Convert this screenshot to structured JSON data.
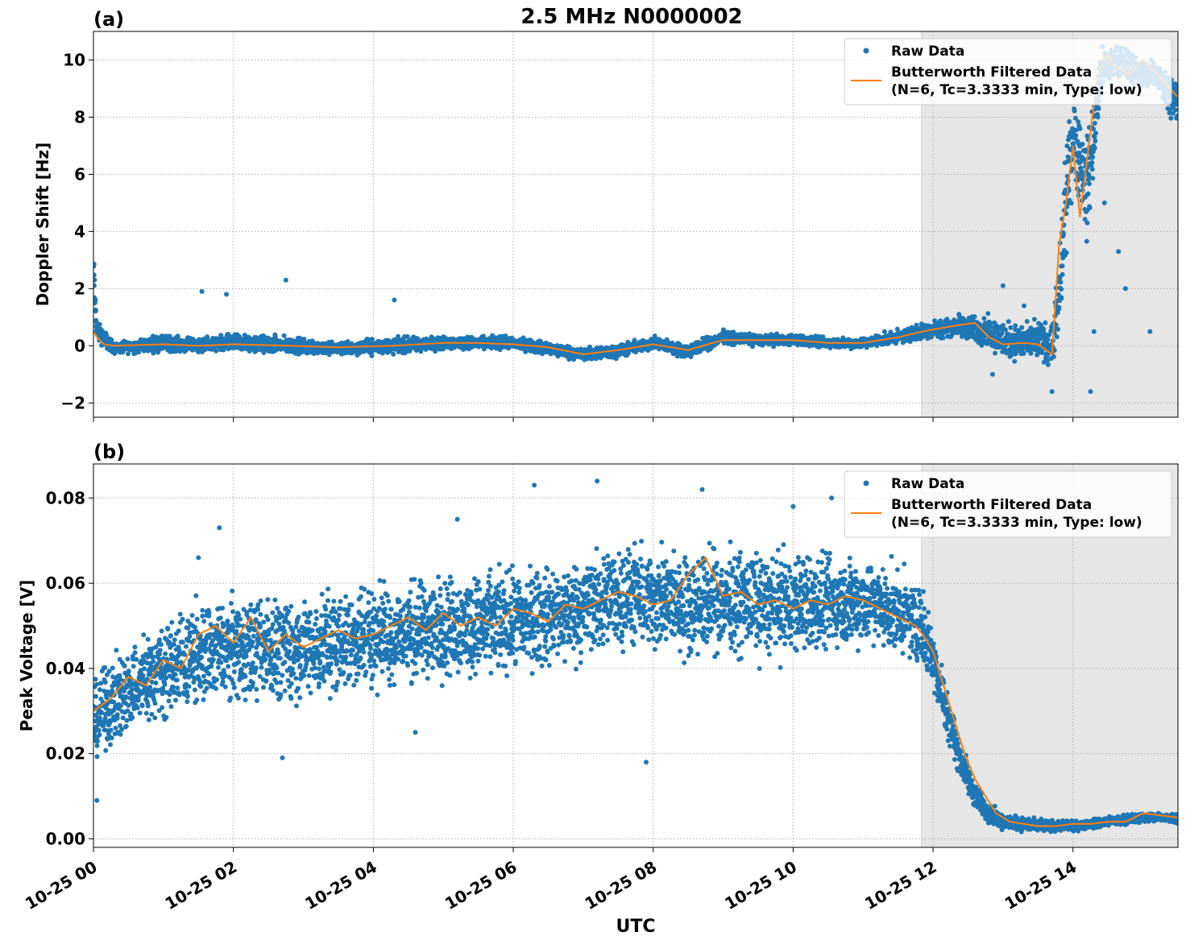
{
  "figure_title": "2.5 MHz N0000002",
  "x_axis_label": "UTC",
  "colors": {
    "raw": "#1f77b4",
    "filtered": "#ff7f0e",
    "shade": "#e6e6e6",
    "grid": "#b0b0b0"
  },
  "chart_data": [
    {
      "type": "scatter",
      "panel_label": "(a)",
      "ylabel": "Doppler Shift [Hz]",
      "xlim": [
        "10-25 00:00",
        "10-25 15:30"
      ],
      "ylim": [
        -2.5,
        11
      ],
      "yticks": [
        -2,
        0,
        2,
        4,
        6,
        8,
        10
      ],
      "ytick_labels": [
        "−2",
        "0",
        "2",
        "4",
        "6",
        "8",
        "10"
      ],
      "xticks": [
        "10-25 00",
        "10-25 02",
        "10-25 04",
        "10-25 06",
        "10-25 08",
        "10-25 10",
        "10-25 12",
        "10-25 14"
      ],
      "grid": true,
      "legend_position": "top-right",
      "shaded_region": {
        "x_start": "10-25 11:50",
        "x_end": "10-25 15:30"
      },
      "series": [
        {
          "name": "Raw Data",
          "kind": "scatter",
          "x_hours": [
            0,
            0.05,
            0.3,
            1,
            1.5,
            2,
            2.8,
            3.5,
            4.3,
            5,
            5.5,
            6,
            6.5,
            7,
            7.5,
            8,
            8.5,
            9,
            9.5,
            10,
            10.5,
            11,
            11.5,
            11.85,
            12.3,
            12.8,
            13,
            13.3,
            13.5,
            13.7,
            13.8,
            13.9,
            14,
            14.2,
            14.4,
            14.6,
            14.8,
            15,
            15.2,
            15.5
          ],
          "y_center": [
            2.5,
            0.5,
            -0.1,
            0.1,
            0,
            0.1,
            0,
            -0.1,
            0,
            0.1,
            0.1,
            0.1,
            -0.1,
            -0.3,
            -0.2,
            0.1,
            -0.2,
            0.3,
            0.2,
            0.2,
            0.1,
            0.1,
            0.3,
            0.5,
            0.7,
            0.5,
            0.2,
            0.1,
            0.2,
            0,
            1.5,
            5,
            7.5,
            5.5,
            9.5,
            10,
            9.8,
            9.5,
            9.5,
            8.5
          ],
          "y_spread": [
            1.2,
            0.5,
            0.25,
            0.4,
            0.3,
            0.45,
            0.4,
            0.3,
            0.4,
            0.3,
            0.3,
            0.3,
            0.3,
            0.3,
            0.3,
            0.3,
            0.3,
            0.3,
            0.25,
            0.25,
            0.25,
            0.25,
            0.3,
            0.4,
            0.5,
            0.7,
            0.9,
            0.8,
            0.9,
            1,
            2,
            2.5,
            2,
            2.5,
            1.2,
            0.6,
            0.8,
            0.7,
            0.8,
            1
          ],
          "outliers": [
            [
              1.55,
              1.9
            ],
            [
              1.9,
              1.8
            ],
            [
              2.75,
              2.3
            ],
            [
              4.3,
              1.6
            ],
            [
              13,
              2.1
            ],
            [
              13.3,
              1.4
            ],
            [
              14.3,
              0.5
            ],
            [
              14.25,
              -1.6
            ],
            [
              14.65,
              3.3
            ],
            [
              14.75,
              2
            ],
            [
              15.1,
              0.5
            ],
            [
              14.45,
              5
            ],
            [
              12.85,
              -1
            ],
            [
              13.7,
              -1.6
            ]
          ]
        },
        {
          "name": "Butterworth Filtered Data\n(N=6, Tc=3.3333 min, Type: low)",
          "kind": "line",
          "x_hours": [
            0,
            0.05,
            0.15,
            0.3,
            1,
            1.5,
            2,
            2.8,
            3.5,
            4.3,
            5,
            5.5,
            6,
            6.5,
            7,
            7.5,
            8,
            8.5,
            9,
            9.5,
            10,
            10.5,
            11,
            11.5,
            11.85,
            12.3,
            12.6,
            12.8,
            13,
            13.3,
            13.5,
            13.7,
            13.8,
            13.9,
            14,
            14.1,
            14.2,
            14.35,
            14.5,
            14.6,
            14.8,
            15,
            15.2,
            15.5
          ],
          "y": [
            0.5,
            0.3,
            0.05,
            0,
            0.05,
            0,
            0.05,
            0,
            -0.05,
            0,
            0.1,
            0.1,
            0.05,
            -0.05,
            -0.3,
            -0.15,
            0.05,
            -0.15,
            0.2,
            0.2,
            0.2,
            0.1,
            0.1,
            0.3,
            0.5,
            0.7,
            0.8,
            0.3,
            0.05,
            0.1,
            0.05,
            -0.3,
            3.5,
            5,
            7,
            4.5,
            6.5,
            9.5,
            10.2,
            9.8,
            9.5,
            10,
            9.5,
            8.7
          ]
        }
      ]
    },
    {
      "type": "scatter",
      "panel_label": "(b)",
      "ylabel": "Peak Voltage [V]",
      "xlim": [
        "10-25 00:00",
        "10-25 15:30"
      ],
      "ylim": [
        -0.002,
        0.088
      ],
      "yticks": [
        0,
        0.02,
        0.04,
        0.06,
        0.08
      ],
      "ytick_labels": [
        "0.00",
        "0.02",
        "0.04",
        "0.06",
        "0.08"
      ],
      "xticks": [
        "10-25 00",
        "10-25 02",
        "10-25 04",
        "10-25 06",
        "10-25 08",
        "10-25 10",
        "10-25 12",
        "10-25 14"
      ],
      "grid": true,
      "legend_position": "top-right",
      "shaded_region": {
        "x_start": "10-25 11:50",
        "x_end": "10-25 15:30"
      },
      "series": [
        {
          "name": "Raw Data",
          "kind": "scatter",
          "x_hours": [
            0,
            0.5,
            1,
            1.5,
            2,
            2.5,
            3,
            3.5,
            4,
            4.5,
            5,
            5.5,
            6,
            6.5,
            7,
            7.5,
            8,
            8.5,
            9,
            9.5,
            10,
            10.5,
            11,
            11.5,
            11.85,
            12,
            12.2,
            12.4,
            12.6,
            12.8,
            13,
            13.5,
            14,
            14.5,
            15,
            15.5
          ],
          "y_center": [
            0.028,
            0.035,
            0.04,
            0.043,
            0.045,
            0.045,
            0.044,
            0.046,
            0.048,
            0.048,
            0.05,
            0.05,
            0.051,
            0.052,
            0.054,
            0.057,
            0.056,
            0.055,
            0.056,
            0.055,
            0.055,
            0.055,
            0.056,
            0.053,
            0.05,
            0.042,
            0.03,
            0.018,
            0.01,
            0.006,
            0.004,
            0.003,
            0.003,
            0.004,
            0.005,
            0.005
          ],
          "y_spread": [
            0.012,
            0.014,
            0.015,
            0.016,
            0.016,
            0.016,
            0.016,
            0.016,
            0.016,
            0.016,
            0.016,
            0.016,
            0.016,
            0.016,
            0.016,
            0.016,
            0.016,
            0.016,
            0.016,
            0.016,
            0.016,
            0.015,
            0.014,
            0.013,
            0.012,
            0.01,
            0.008,
            0.006,
            0.004,
            0.003,
            0.0025,
            0.002,
            0.0015,
            0.0015,
            0.0015,
            0.0015
          ],
          "outliers": [
            [
              0.05,
              0.009
            ],
            [
              1.5,
              0.066
            ],
            [
              1.8,
              0.073
            ],
            [
              2.7,
              0.019
            ],
            [
              5.2,
              0.075
            ],
            [
              6.3,
              0.083
            ],
            [
              7.2,
              0.084
            ],
            [
              7.9,
              0.018
            ],
            [
              8.7,
              0.082
            ],
            [
              10,
              0.078
            ],
            [
              10.55,
              0.08
            ],
            [
              4.6,
              0.025
            ]
          ]
        },
        {
          "name": "Butterworth Filtered Data\n(N=6, Tc=3.3333 min, Type: low)",
          "kind": "line",
          "x_hours": [
            0,
            0.25,
            0.5,
            0.75,
            1,
            1.25,
            1.5,
            1.75,
            2,
            2.25,
            2.5,
            2.75,
            3,
            3.25,
            3.5,
            3.75,
            4,
            4.25,
            4.5,
            4.75,
            5,
            5.25,
            5.5,
            5.75,
            6,
            6.25,
            6.5,
            6.75,
            7,
            7.25,
            7.5,
            7.75,
            8,
            8.25,
            8.5,
            8.75,
            9,
            9.25,
            9.5,
            9.75,
            10,
            10.25,
            10.5,
            10.75,
            11,
            11.25,
            11.5,
            11.75,
            11.85,
            12,
            12.15,
            12.3,
            12.45,
            12.6,
            12.75,
            12.9,
            13.1,
            13.3,
            13.5,
            13.75,
            14,
            14.25,
            14.5,
            14.75,
            15,
            15.25,
            15.5
          ],
          "y": [
            0.03,
            0.033,
            0.038,
            0.036,
            0.042,
            0.04,
            0.048,
            0.05,
            0.046,
            0.052,
            0.044,
            0.048,
            0.045,
            0.047,
            0.049,
            0.047,
            0.048,
            0.05,
            0.052,
            0.049,
            0.053,
            0.05,
            0.052,
            0.05,
            0.054,
            0.053,
            0.051,
            0.055,
            0.054,
            0.056,
            0.058,
            0.057,
            0.055,
            0.056,
            0.062,
            0.066,
            0.057,
            0.058,
            0.055,
            0.056,
            0.054,
            0.056,
            0.055,
            0.057,
            0.056,
            0.054,
            0.052,
            0.05,
            0.048,
            0.044,
            0.036,
            0.028,
            0.02,
            0.014,
            0.01,
            0.006,
            0.004,
            0.0035,
            0.003,
            0.003,
            0.0035,
            0.0035,
            0.004,
            0.004,
            0.006,
            0.0055,
            0.005
          ]
        }
      ]
    }
  ]
}
